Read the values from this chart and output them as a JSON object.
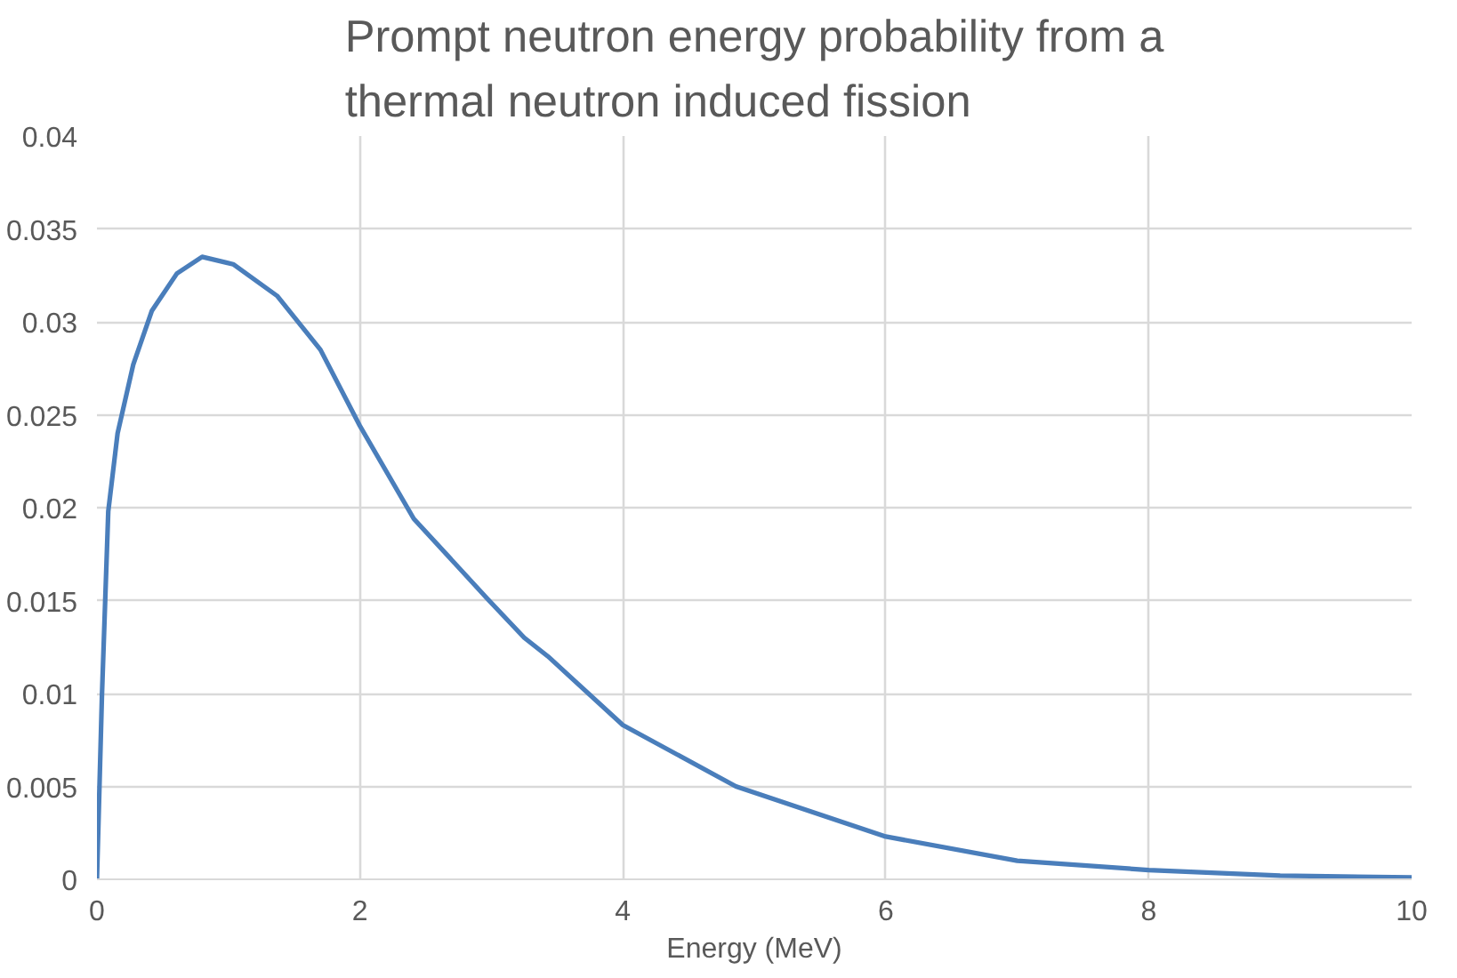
{
  "chart_data": {
    "type": "line",
    "title": "Prompt neutron energy probability from a thermal neutron induced fission",
    "xlabel": "Energy (MeV)",
    "series": [
      {
        "color": "#4a7ebb",
        "x": [
          0,
          0.038,
          0.086,
          0.157,
          0.276,
          0.418,
          0.608,
          0.8,
          1.036,
          1.37,
          1.7,
          2.0,
          2.41,
          2.97,
          3.25,
          3.43,
          4.0,
          4.86,
          6.0,
          7.0,
          8.0,
          9.0,
          10.0
        ],
        "values": [
          0,
          0.0099,
          0.0198,
          0.024,
          0.0277,
          0.0306,
          0.0326,
          0.0335,
          0.0331,
          0.0314,
          0.0285,
          0.0244,
          0.0194,
          0.0151,
          0.013,
          0.012,
          0.0083,
          0.005,
          0.0023,
          0.001,
          0.0005,
          0.0002,
          0.0001
        ]
      }
    ],
    "xlim": [
      0,
      10
    ],
    "xticks": [
      0,
      2,
      4,
      6,
      8,
      10
    ],
    "ylim": [
      0,
      0.04
    ],
    "yticks": [
      0,
      0.005,
      0.01,
      0.015,
      0.02,
      0.025,
      0.03,
      0.035,
      0.04
    ],
    "grid": true,
    "marker": "none",
    "line_style": "solid"
  }
}
